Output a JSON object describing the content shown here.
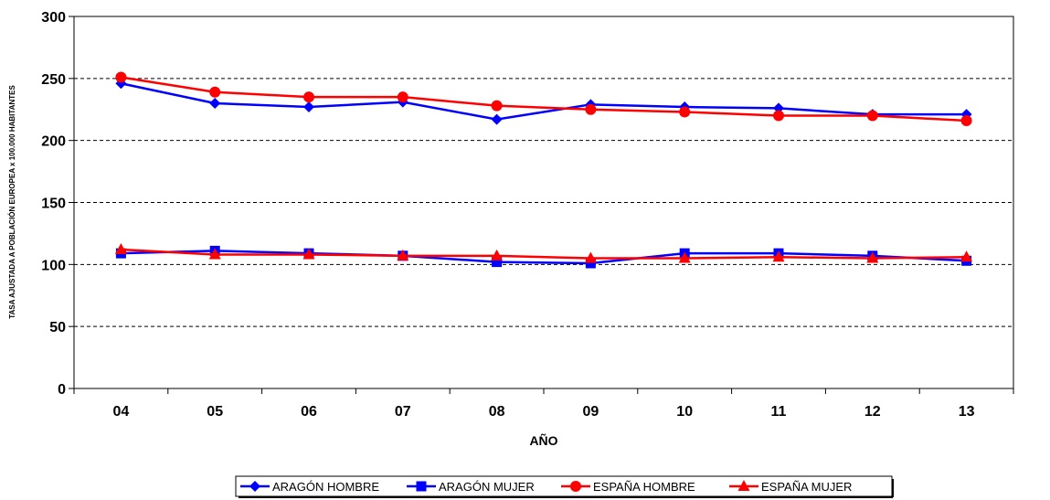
{
  "chart_data": {
    "type": "line",
    "title": "",
    "xlabel": "AÑO",
    "ylabel": "TASA AJUSTADA A POBLACIÓN EUROPEA x 100.000 HABITANTES",
    "categories": [
      "04",
      "05",
      "06",
      "07",
      "08",
      "09",
      "10",
      "11",
      "12",
      "13"
    ],
    "ylim": [
      0,
      300
    ],
    "yticks": [
      0,
      50,
      100,
      150,
      200,
      250,
      300
    ],
    "grid": "horizontal dashed",
    "legend": "bottom",
    "series": [
      {
        "name": "ARAGÓN HOMBRE",
        "color": "#0000FF",
        "marker": "diamond",
        "values": [
          246,
          230,
          227,
          231,
          217,
          229,
          227,
          226,
          221,
          221
        ]
      },
      {
        "name": "ARAGÓN MUJER",
        "color": "#0000FF",
        "marker": "square",
        "values": [
          109,
          111,
          109,
          107,
          102,
          101,
          109,
          109,
          107,
          103
        ]
      },
      {
        "name": "ESPAÑA HOMBRE",
        "color": "#FF0000",
        "marker": "circle",
        "values": [
          251,
          239,
          235,
          235,
          228,
          225,
          223,
          220,
          220,
          216
        ]
      },
      {
        "name": "ESPAÑA MUJER",
        "color": "#FF0000",
        "marker": "triangle",
        "values": [
          112,
          108,
          108,
          107,
          107,
          105,
          105,
          106,
          105,
          106
        ]
      }
    ]
  }
}
